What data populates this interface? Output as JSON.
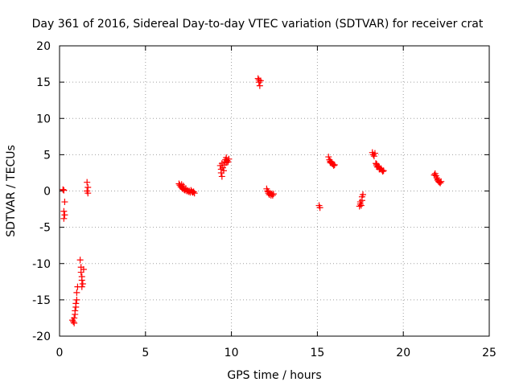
{
  "chart_data": {
    "type": "scatter",
    "title": "Day 361 of 2016, Sidereal Day-to-day VTEC variation (SDTVAR) for receiver crat",
    "xlabel": "GPS time / hours",
    "ylabel": "SDTVAR / TECUs",
    "xlim": [
      0,
      25
    ],
    "ylim": [
      -20,
      20
    ],
    "xticks": [
      0,
      5,
      10,
      15,
      20,
      25
    ],
    "yticks": [
      -20,
      -15,
      -10,
      -5,
      0,
      5,
      10,
      15,
      20
    ],
    "grid": true,
    "marker": "+",
    "marker_color": "#ff0000",
    "series": [
      {
        "name": "SDTVAR",
        "points": [
          [
            0.2,
            0.2
          ],
          [
            0.25,
            0.1
          ],
          [
            0.3,
            -1.5
          ],
          [
            0.25,
            -2.8
          ],
          [
            0.3,
            -3.3
          ],
          [
            0.25,
            -3.8
          ],
          [
            0.75,
            -17.8
          ],
          [
            0.8,
            -18.0
          ],
          [
            0.85,
            -17.5
          ],
          [
            0.9,
            -17.0
          ],
          [
            0.9,
            -16.5
          ],
          [
            0.95,
            -16.0
          ],
          [
            0.95,
            -15.5
          ],
          [
            1.0,
            -15.0
          ],
          [
            1.0,
            -14.0
          ],
          [
            1.05,
            -13.2
          ],
          [
            0.85,
            -18.2
          ],
          [
            1.2,
            -9.5
          ],
          [
            1.25,
            -10.5
          ],
          [
            1.25,
            -11.2
          ],
          [
            1.3,
            -11.8
          ],
          [
            1.3,
            -12.3
          ],
          [
            1.35,
            -12.8
          ],
          [
            1.3,
            -13.2
          ],
          [
            1.4,
            -10.8
          ],
          [
            1.6,
            1.2
          ],
          [
            1.65,
            0.5
          ],
          [
            1.6,
            0.0
          ],
          [
            1.65,
            -0.3
          ],
          [
            6.95,
            1.0
          ],
          [
            7.0,
            0.8
          ],
          [
            7.05,
            0.6
          ],
          [
            7.1,
            0.5
          ],
          [
            7.15,
            0.3
          ],
          [
            7.2,
            0.4
          ],
          [
            7.25,
            0.2
          ],
          [
            7.3,
            0.1
          ],
          [
            7.35,
            0.3
          ],
          [
            7.4,
            0.0
          ],
          [
            7.45,
            0.1
          ],
          [
            7.5,
            -0.1
          ],
          [
            7.55,
            0.0
          ],
          [
            7.6,
            -0.2
          ],
          [
            7.65,
            0.1
          ],
          [
            7.7,
            -0.1
          ],
          [
            7.75,
            -0.2
          ],
          [
            7.8,
            -0.1
          ],
          [
            7.85,
            -0.3
          ],
          [
            7.1,
            0.9
          ],
          [
            7.2,
            0.7
          ],
          [
            9.35,
            3.5
          ],
          [
            9.4,
            3.0
          ],
          [
            9.4,
            2.5
          ],
          [
            9.45,
            2.0
          ],
          [
            9.45,
            3.8
          ],
          [
            9.5,
            3.2
          ],
          [
            9.55,
            2.8
          ],
          [
            9.6,
            4.0
          ],
          [
            9.65,
            4.3
          ],
          [
            9.7,
            4.6
          ],
          [
            9.75,
            4.2
          ],
          [
            9.8,
            4.0
          ],
          [
            9.85,
            4.4
          ],
          [
            9.6,
            3.6
          ],
          [
            9.7,
            3.9
          ],
          [
            11.55,
            15.5
          ],
          [
            11.6,
            15.3
          ],
          [
            11.6,
            15.0
          ],
          [
            11.65,
            14.5
          ],
          [
            11.7,
            15.2
          ],
          [
            12.05,
            0.3
          ],
          [
            12.1,
            0.0
          ],
          [
            12.15,
            -0.3
          ],
          [
            12.2,
            -0.5
          ],
          [
            12.25,
            -0.3
          ],
          [
            12.3,
            -0.6
          ],
          [
            12.35,
            -0.4
          ],
          [
            12.4,
            -0.6
          ],
          [
            12.45,
            -0.4
          ],
          [
            12.15,
            -0.1
          ],
          [
            15.1,
            -2.0
          ],
          [
            15.15,
            -2.3
          ],
          [
            15.65,
            4.7
          ],
          [
            15.7,
            4.3
          ],
          [
            15.75,
            4.1
          ],
          [
            15.8,
            4.0
          ],
          [
            15.85,
            3.8
          ],
          [
            15.9,
            3.7
          ],
          [
            15.95,
            3.5
          ],
          [
            16.0,
            3.6
          ],
          [
            15.75,
            3.9
          ],
          [
            17.45,
            -2.1
          ],
          [
            17.5,
            -1.8
          ],
          [
            17.55,
            -2.0
          ],
          [
            17.6,
            -1.3
          ],
          [
            17.6,
            -0.8
          ],
          [
            17.65,
            -0.5
          ],
          [
            17.5,
            -1.5
          ],
          [
            18.2,
            5.3
          ],
          [
            18.25,
            5.0
          ],
          [
            18.3,
            4.8
          ],
          [
            18.35,
            5.2
          ],
          [
            18.4,
            3.8
          ],
          [
            18.45,
            3.5
          ],
          [
            18.5,
            3.3
          ],
          [
            18.55,
            3.4
          ],
          [
            18.6,
            3.2
          ],
          [
            18.65,
            3.0
          ],
          [
            18.7,
            3.1
          ],
          [
            18.75,
            2.9
          ],
          [
            18.8,
            2.7
          ],
          [
            18.85,
            2.8
          ],
          [
            18.45,
            3.7
          ],
          [
            18.6,
            3.0
          ],
          [
            21.8,
            2.2
          ],
          [
            21.85,
            2.4
          ],
          [
            21.9,
            2.1
          ],
          [
            21.95,
            1.8
          ],
          [
            22.0,
            1.5
          ],
          [
            22.05,
            1.3
          ],
          [
            22.1,
            1.2
          ],
          [
            22.15,
            1.1
          ],
          [
            22.2,
            1.3
          ],
          [
            22.0,
            1.6
          ]
        ]
      }
    ]
  }
}
